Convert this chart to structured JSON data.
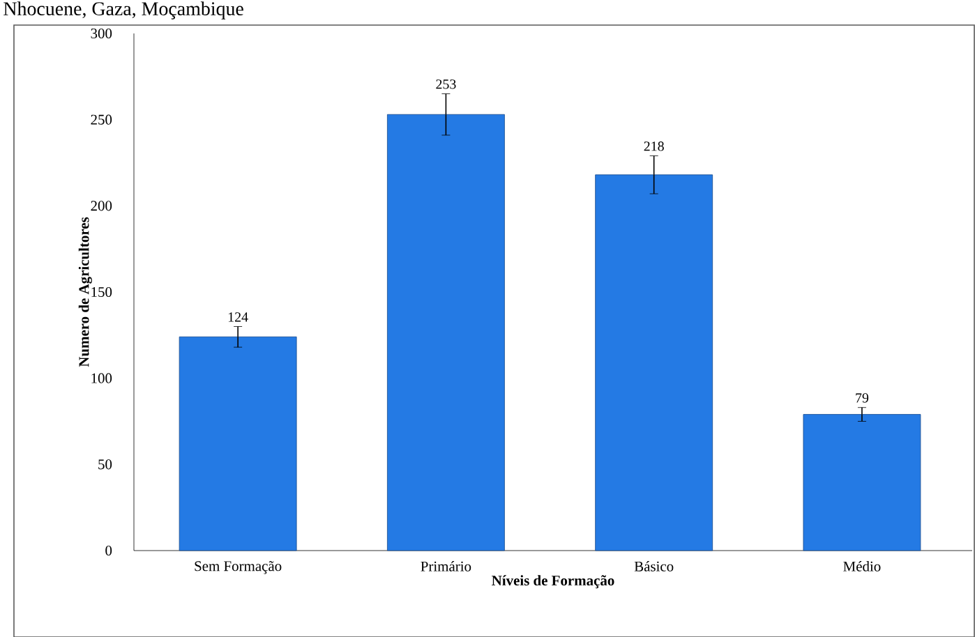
{
  "chart_data": {
    "type": "bar",
    "title": "Nhocuene, Gaza, Moçambique",
    "categories": [
      "Sem Formação",
      "Primário",
      "Básico",
      "Médio"
    ],
    "values": [
      124,
      253,
      218,
      79
    ],
    "errors": [
      6,
      12,
      11,
      4
    ],
    "color": "#247ae4",
    "xlabel": "Níveis de Formação",
    "ylabel": "Numero de Agricultores",
    "ylim": [
      0,
      300
    ],
    "yticks": [
      0,
      50,
      100,
      150,
      200,
      250,
      300
    ],
    "data_labels": true
  }
}
